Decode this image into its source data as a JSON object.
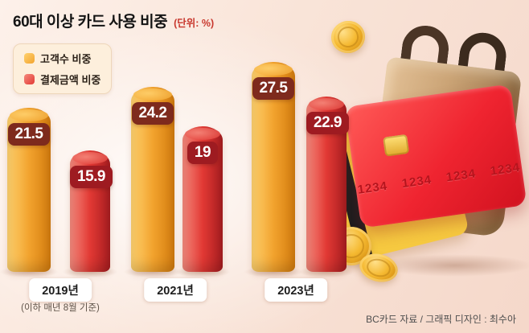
{
  "title": "60대 이상 카드 사용 비중",
  "unit_label": "(단위: %)",
  "chart_data": {
    "type": "bar",
    "title": "60대 이상 카드 사용 비중",
    "unit": "%",
    "categories": [
      "2019년",
      "2021년",
      "2023년"
    ],
    "series": [
      {
        "name": "고객수 비중",
        "values": [
          21.5,
          24.2,
          27.5
        ],
        "color": "#f2a32e",
        "color_light": "#ffd26f",
        "color_dark": "#d47c0e",
        "label_bg": "#7e2a1d"
      },
      {
        "name": "결제금액 비중",
        "values": [
          15.9,
          19,
          22.9
        ],
        "color": "#e23934",
        "color_light": "#f58a7d",
        "color_dark": "#a81d20",
        "label_bg": "#9e1b21"
      }
    ],
    "footnote": "(이하 매년 8월 기준)",
    "ylim": [
      0,
      30
    ],
    "legend_position": "top-left",
    "grid": false
  },
  "credit": "BC카드 자료 / 그래픽 디자인 : 최수아",
  "illustration": {
    "card_number": "1234 1234 1234 1234"
  },
  "colors": {
    "title": "#141414",
    "unit": "#c8372d",
    "credit": "#4f4f4f",
    "bg_start": "#fdf1ea",
    "bg_end": "#f5d8ca"
  }
}
